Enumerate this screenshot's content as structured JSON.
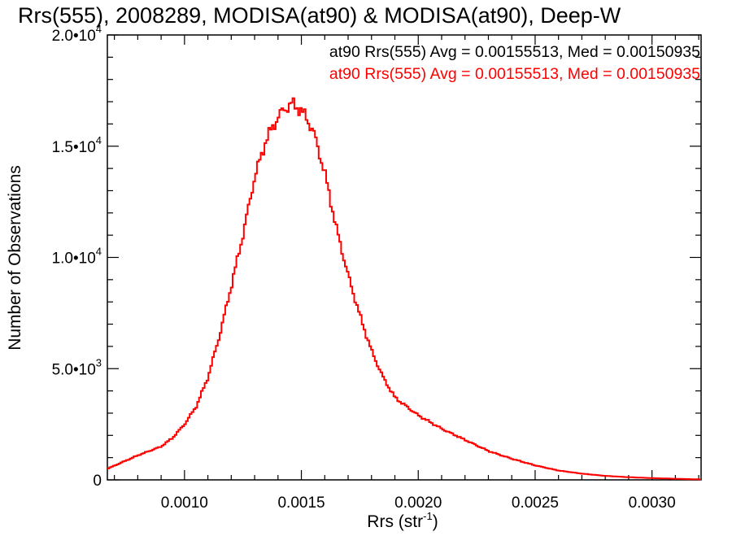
{
  "chart_data": {
    "type": "histogram",
    "title": "Rrs(555), 2008289, MODISA(at90) & MODISA(at90), Deep-W",
    "xlabel": "Rrs (str",
    "xlabel_sup": "-1",
    "xlabel_end": ")",
    "ylabel": "Number of Observations",
    "xlim": [
      0.00067,
      0.00321
    ],
    "ylim": [
      0,
      20000
    ],
    "x_ticks": [
      {
        "value": 0.001,
        "label": "0.0010"
      },
      {
        "value": 0.0015,
        "label": "0.0015"
      },
      {
        "value": 0.002,
        "label": "0.0020"
      },
      {
        "value": 0.0025,
        "label": "0.0025"
      },
      {
        "value": 0.003,
        "label": "0.0030"
      }
    ],
    "y_ticks": [
      {
        "value": 0,
        "mantissa": "0",
        "exponent": ""
      },
      {
        "value": 5000,
        "mantissa": "5.0•10",
        "exponent": "3"
      },
      {
        "value": 10000,
        "mantissa": "1.0•10",
        "exponent": "4"
      },
      {
        "value": 15000,
        "mantissa": "1.5•10",
        "exponent": "4"
      },
      {
        "value": 20000,
        "mantissa": "2.0•10",
        "exponent": "4"
      }
    ],
    "annotations": [
      {
        "text": "at90 Rrs(555) Avg = 0.00155513, Med = 0.00150935",
        "color": "#000000"
      },
      {
        "text": "at90 Rrs(555) Avg = 0.00155513, Med = 0.00150935",
        "color": "#ff0000"
      }
    ],
    "series": [
      {
        "color": "#ff0000",
        "x": [
          0.00067,
          0.0008,
          0.0009,
          0.00095,
          0.001,
          0.00105,
          0.0011,
          0.00115,
          0.0012,
          0.00125,
          0.0013,
          0.00135,
          0.0014,
          0.00143,
          0.00146,
          0.00149,
          0.00152,
          0.00155,
          0.0016,
          0.00165,
          0.0017,
          0.00175,
          0.0018,
          0.00185,
          0.0019,
          0.002,
          0.0021,
          0.0022,
          0.0023,
          0.0024,
          0.0025,
          0.0026,
          0.0027,
          0.0028,
          0.0029,
          0.003,
          0.0031,
          0.00321
        ],
        "y": [
          500,
          1100,
          1500,
          1900,
          2500,
          3300,
          4600,
          6500,
          8700,
          11000,
          13600,
          15300,
          16300,
          16700,
          16900,
          16700,
          16300,
          15700,
          13800,
          11300,
          9200,
          7400,
          5800,
          4600,
          3700,
          2900,
          2300,
          1800,
          1300,
          950,
          650,
          420,
          280,
          180,
          120,
          80,
          50,
          20
        ]
      }
    ]
  }
}
